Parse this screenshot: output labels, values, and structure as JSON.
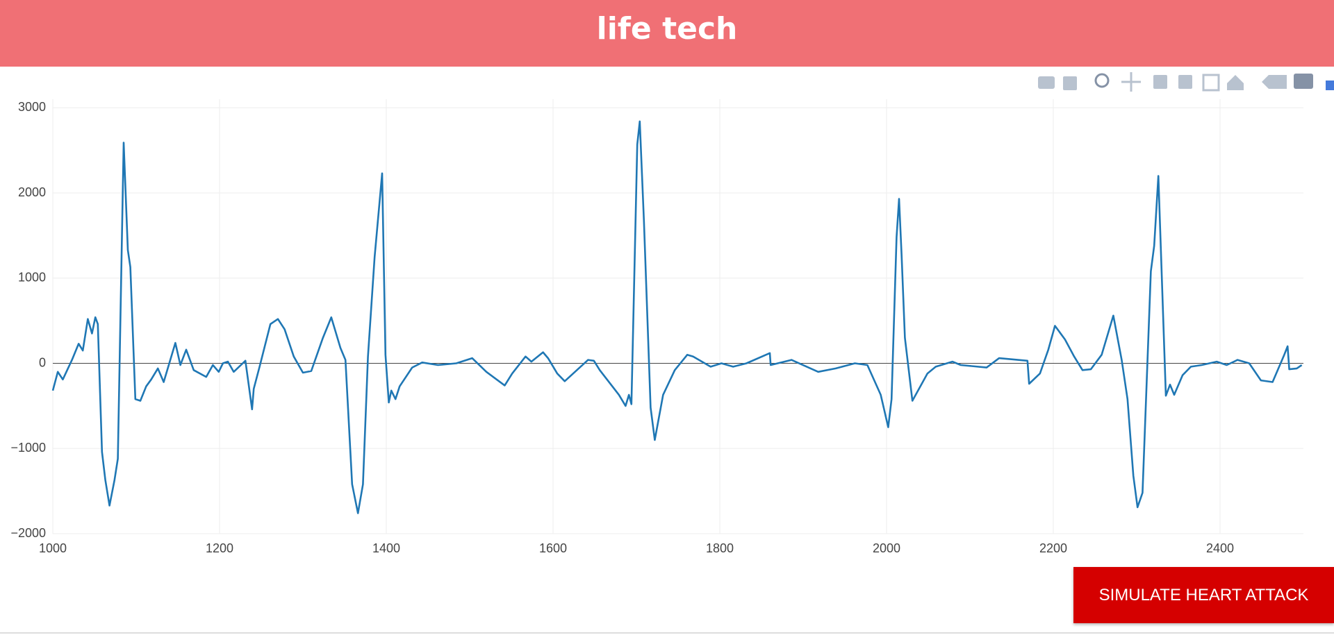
{
  "header": {
    "title": "life tech"
  },
  "button": {
    "label": "SIMULATE HEART ATTACK"
  },
  "chart_data": {
    "type": "line",
    "x": [
      1000,
      1006,
      1012,
      1023,
      1031,
      1036,
      1042,
      1047,
      1051,
      1054,
      1059,
      1063,
      1068,
      1074,
      1078,
      1085,
      1090,
      1093,
      1099,
      1105,
      1112,
      1118,
      1126,
      1133,
      1147,
      1153,
      1160,
      1169,
      1184,
      1192,
      1199,
      1204,
      1210,
      1217,
      1231,
      1239,
      1241,
      1248,
      1261,
      1270,
      1278,
      1289,
      1300,
      1310,
      1324,
      1334,
      1345,
      1351,
      1359,
      1366,
      1372,
      1378,
      1386,
      1395,
      1399,
      1403,
      1406,
      1411,
      1416,
      1431,
      1443,
      1462,
      1484,
      1503,
      1520,
      1542,
      1551,
      1567,
      1574,
      1588,
      1594,
      1605,
      1614,
      1642,
      1649,
      1656,
      1679,
      1687,
      1691,
      1694,
      1701,
      1704,
      1709,
      1717,
      1722,
      1732,
      1746,
      1761,
      1768,
      1789,
      1802,
      1816,
      1832,
      1860,
      1861,
      1886,
      1918,
      1939,
      1962,
      1977,
      1993,
      2002,
      2006,
      2012,
      2015,
      2018,
      2022,
      2031,
      2049,
      2059,
      2079,
      2089,
      2120,
      2135,
      2169,
      2171,
      2184,
      2194,
      2202,
      2214,
      2225,
      2235,
      2245,
      2258,
      2272,
      2282,
      2289,
      2296,
      2301,
      2307,
      2317,
      2321,
      2326,
      2335,
      2340,
      2345,
      2355,
      2365,
      2378,
      2396,
      2408,
      2421,
      2435,
      2449,
      2463,
      2477,
      2481,
      2483,
      2492,
      2498
    ],
    "series": [
      {
        "color": "#1f77b4",
        "values": [
          -320,
          -100,
          -190,
          40,
          230,
          150,
          520,
          350,
          540,
          460,
          -1040,
          -1370,
          -1670,
          -1370,
          -1120,
          2590,
          1330,
          1130,
          -420,
          -440,
          -270,
          -190,
          -60,
          -220,
          240,
          -20,
          160,
          -80,
          -160,
          -20,
          -100,
          0,
          20,
          -100,
          30,
          -540,
          -300,
          -40,
          460,
          520,
          400,
          80,
          -110,
          -90,
          300,
          540,
          180,
          40,
          -1420,
          -1760,
          -1420,
          80,
          1250,
          2230,
          100,
          -460,
          -320,
          -420,
          -270,
          -50,
          10,
          -20,
          0,
          60,
          -100,
          -260,
          -120,
          80,
          20,
          130,
          60,
          -120,
          -210,
          40,
          30,
          -80,
          -370,
          -500,
          -370,
          -480,
          2570,
          2840,
          1670,
          -520,
          -900,
          -370,
          -80,
          100,
          80,
          -40,
          0,
          -40,
          0,
          120,
          -20,
          40,
          -100,
          -60,
          0,
          -20,
          -370,
          -750,
          -420,
          1480,
          1930,
          1280,
          300,
          -440,
          -120,
          -40,
          20,
          -20,
          -50,
          60,
          30,
          -240,
          -120,
          160,
          440,
          280,
          80,
          -80,
          -70,
          100,
          560,
          40,
          -420,
          -1320,
          -1690,
          -1520,
          1080,
          1380,
          2200,
          -380,
          -250,
          -370,
          -140,
          -40,
          -20,
          20,
          -20,
          40,
          0,
          -200,
          -220,
          100,
          200,
          -70,
          -60,
          -20
        ]
      }
    ],
    "xlim": [
      1000,
      2500
    ],
    "ylim": [
      -2000,
      3100
    ],
    "xticks": [
      1000,
      1200,
      1400,
      1600,
      1800,
      2000,
      2200,
      2400
    ],
    "yticks": [
      {
        "value": -2000,
        "label": "−2000"
      },
      {
        "value": -1000,
        "label": "−1000"
      },
      0,
      1000,
      2000,
      3000
    ],
    "grid": true,
    "zeroline": true
  }
}
